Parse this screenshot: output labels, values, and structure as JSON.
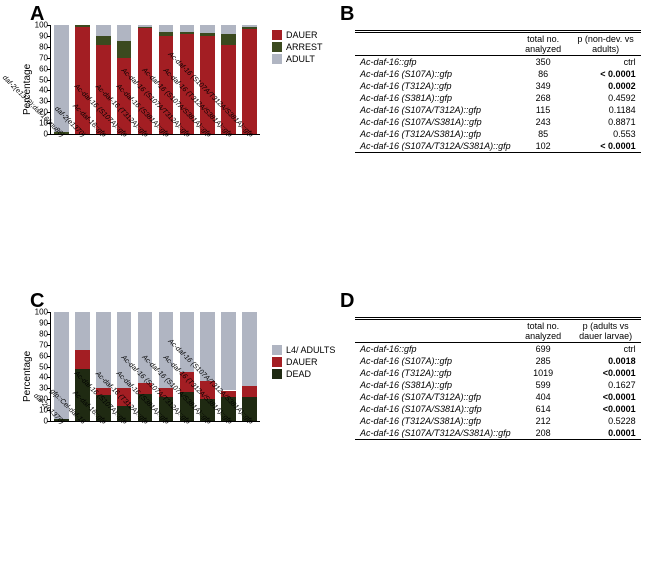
{
  "colors": {
    "dauer": "#a31e23",
    "arrest": "#3b4a1f",
    "adult": "#b0b5c2",
    "l4adults": "#b0b5c2",
    "dead": "#1f2a12",
    "axis": "#000000",
    "background": "#ffffff"
  },
  "chartA": {
    "panel_label": "A",
    "type": "stacked-bar",
    "ylabel": "Percentage",
    "ylim": [
      0,
      100
    ],
    "ytick_step": 10,
    "label_fontsize": 10,
    "bar_width": 0.7,
    "legend": [
      {
        "label": "DAUER",
        "color_key": "dauer"
      },
      {
        "label": "ARREST",
        "color_key": "arrest"
      },
      {
        "label": "ADULT",
        "color_key": "adult"
      }
    ],
    "categories": [
      "daf-2(e1370);daf-16(mu86)",
      "daf-2(e1370)",
      "Ac-daf-16::gfp",
      "Ac-daf-16 (S107A)::gfp",
      "Ac-daf-16 (T312A)::gfp",
      "Ac-daf-16 (S381A)::gfp",
      "Ac-daf-16 (S107A/T312A)::gfp",
      "Ac-daf-16 (S107A/S381A)::gfp",
      "Ac-daf-16 (T312A/S381A)::gfp",
      "Ac-daf-16 (S107A/T312A/S381A)::gfp"
    ],
    "stacks": [
      {
        "dauer": 0,
        "arrest": 2,
        "adult": 98
      },
      {
        "dauer": 98,
        "arrest": 2,
        "adult": 0
      },
      {
        "dauer": 82,
        "arrest": 8,
        "adult": 10
      },
      {
        "dauer": 70,
        "arrest": 15,
        "adult": 15
      },
      {
        "dauer": 97,
        "arrest": 1,
        "adult": 2
      },
      {
        "dauer": 90,
        "arrest": 4,
        "adult": 6
      },
      {
        "dauer": 92,
        "arrest": 2,
        "adult": 6
      },
      {
        "dauer": 90,
        "arrest": 3,
        "adult": 7
      },
      {
        "dauer": 82,
        "arrest": 10,
        "adult": 8
      },
      {
        "dauer": 96,
        "arrest": 2,
        "adult": 2
      }
    ]
  },
  "chartC": {
    "panel_label": "C",
    "type": "stacked-bar",
    "ylabel": "Percentage",
    "ylim": [
      0,
      100
    ],
    "ytick_step": 10,
    "label_fontsize": 10,
    "bar_width": 0.7,
    "legend": [
      {
        "label": "L4/ ADULTS",
        "color_key": "l4adults"
      },
      {
        "label": "DAUER",
        "color_key": "dauer"
      },
      {
        "label": "DEAD",
        "color_key": "dead"
      }
    ],
    "categories": [
      "daf-2(e1370)",
      "gfp::Cel-daf-16",
      "Ac-daf-16::gfp",
      "Ac-daf-16 (S107A)::gfp",
      "Ac-daf-16 (T312A)::gfp",
      "Ac-daf-16 (S381A)::gfp",
      "Ac-daf-16 (S107A/T312A)::gfp",
      "Ac-daf-16 (S107A/S381A)::gfp",
      "Ac-daf-16 (T312A/S381A)::gfp",
      "Ac-daf-16 (S107A/T312A/S381A)::gfp"
    ],
    "stacks": [
      {
        "l4adults": 98,
        "dauer": 0,
        "dead": 2
      },
      {
        "l4adults": 35,
        "dauer": 17,
        "dead": 48
      },
      {
        "l4adults": 70,
        "dauer": 6,
        "dead": 24
      },
      {
        "l4adults": 70,
        "dauer": 16,
        "dead": 14
      },
      {
        "l4adults": 65,
        "dauer": 10,
        "dead": 25
      },
      {
        "l4adults": 70,
        "dauer": 8,
        "dead": 22
      },
      {
        "l4adults": 55,
        "dauer": 18,
        "dead": 27
      },
      {
        "l4adults": 63,
        "dauer": 17,
        "dead": 20
      },
      {
        "l4adults": 72,
        "dauer": 6,
        "dead": 22
      },
      {
        "l4adults": 68,
        "dauer": 10,
        "dead": 22
      }
    ]
  },
  "tableB": {
    "panel_label": "B",
    "col1": "total no. analyzed",
    "col2": "p (non-dev. vs adults)",
    "rows": [
      {
        "name": "Ac-daf-16::gfp",
        "n": "350",
        "p": "ctrl",
        "bold": false
      },
      {
        "name": "Ac-daf-16 (S107A)::gfp",
        "n": "86",
        "p": "< 0.0001",
        "bold": true
      },
      {
        "name": "Ac-daf-16 (T312A)::gfp",
        "n": "349",
        "p": "0.0002",
        "bold": true
      },
      {
        "name": "Ac-daf-16 (S381A)::gfp",
        "n": "268",
        "p": "0.4592",
        "bold": false
      },
      {
        "name": "Ac-daf-16 (S107A/T312A)::gfp",
        "n": "115",
        "p": "0.1184",
        "bold": false
      },
      {
        "name": "Ac-daf-16 (S107A/S381A)::gfp",
        "n": "243",
        "p": "0.8871",
        "bold": false
      },
      {
        "name": "Ac-daf-16 (T312A/S381A)::gfp",
        "n": "85",
        "p": "0.553",
        "bold": false
      },
      {
        "name": "Ac-daf-16 (S107A/T312A/S381A)::gfp",
        "n": "102",
        "p": "< 0.0001",
        "bold": true
      }
    ]
  },
  "tableD": {
    "panel_label": "D",
    "col1": "total no. analyzed",
    "col2": "p (adults vs dauer larvae)",
    "rows": [
      {
        "name": "Ac-daf-16::gfp",
        "n": "699",
        "p": "ctrl",
        "bold": false
      },
      {
        "name": "Ac-daf-16 (S107A)::gfp",
        "n": "285",
        "p": "0.0018",
        "bold": true
      },
      {
        "name": "Ac-daf-16 (T312A)::gfp",
        "n": "1019",
        "p": "<0.0001",
        "bold": true
      },
      {
        "name": "Ac-daf-16 (S381A)::gfp",
        "n": "599",
        "p": "0.1627",
        "bold": false
      },
      {
        "name": "Ac-daf-16 (S107A/T312A)::gfp",
        "n": "404",
        "p": "<0.0001",
        "bold": true
      },
      {
        "name": "Ac-daf-16 (S107A/S381A)::gfp",
        "n": "614",
        "p": "<0.0001",
        "bold": true
      },
      {
        "name": "Ac-daf-16 (T312A/S381A)::gfp",
        "n": "212",
        "p": "0.5228",
        "bold": false
      },
      {
        "name": "Ac-daf-16 (S107A/T312A/S381A)::gfp",
        "n": "208",
        "p": "0.0001",
        "bold": true
      }
    ]
  }
}
